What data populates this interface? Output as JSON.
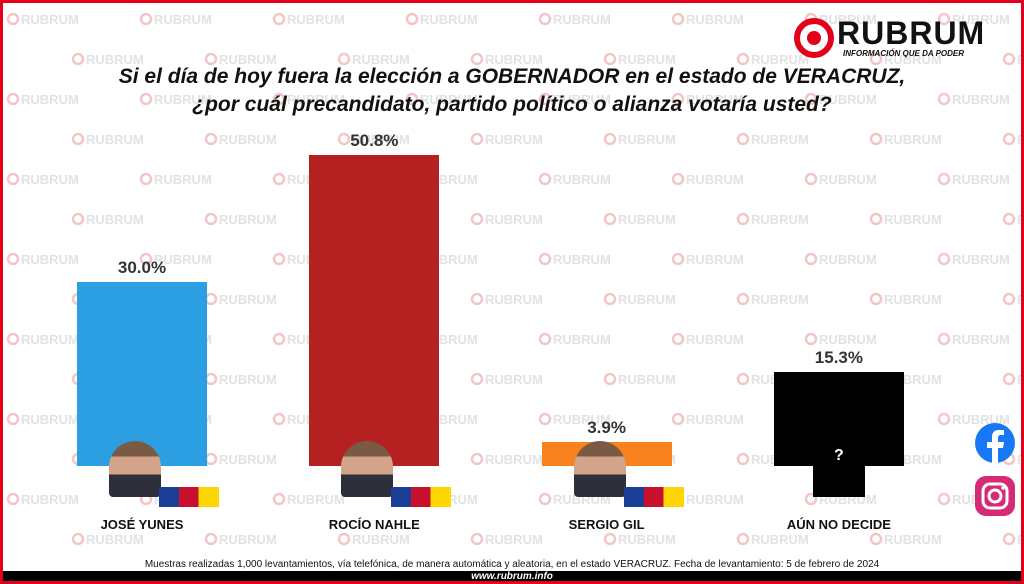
{
  "brand": "RUBRUM",
  "brand_tagline": "INFORMACIÓN QUE DA PODER",
  "watermark": "RUBRUM",
  "chart_data": {
    "type": "bar",
    "title": "Si el día de hoy fuera la elección a GOBERNADOR en el estado de VERACRUZ,",
    "subtitle": "¿por cuál precandidato, partido político o alianza votaría usted?",
    "categories": [
      "JOSÉ YUNES",
      "ROCÍO NAHLE",
      "SERGIO GIL",
      "AÚN NO DECIDE"
    ],
    "values": [
      30.0,
      50.8,
      3.9,
      15.3
    ],
    "value_labels": [
      "30.0%",
      "50.8%",
      "3.9%",
      "15.3%"
    ],
    "colors": [
      "#2c9fe2",
      "#b52121",
      "#f7821f",
      "#000000"
    ]
  },
  "unknown_icon": "?",
  "footnote": "Muestras realizadas 1,000 levantamientos, vía telefónica, de manera automática y aleatoria, en el estado VERACRUZ. Fecha de levantamiento: 5 de febrero de 2024",
  "website": "www.rubrum.info"
}
